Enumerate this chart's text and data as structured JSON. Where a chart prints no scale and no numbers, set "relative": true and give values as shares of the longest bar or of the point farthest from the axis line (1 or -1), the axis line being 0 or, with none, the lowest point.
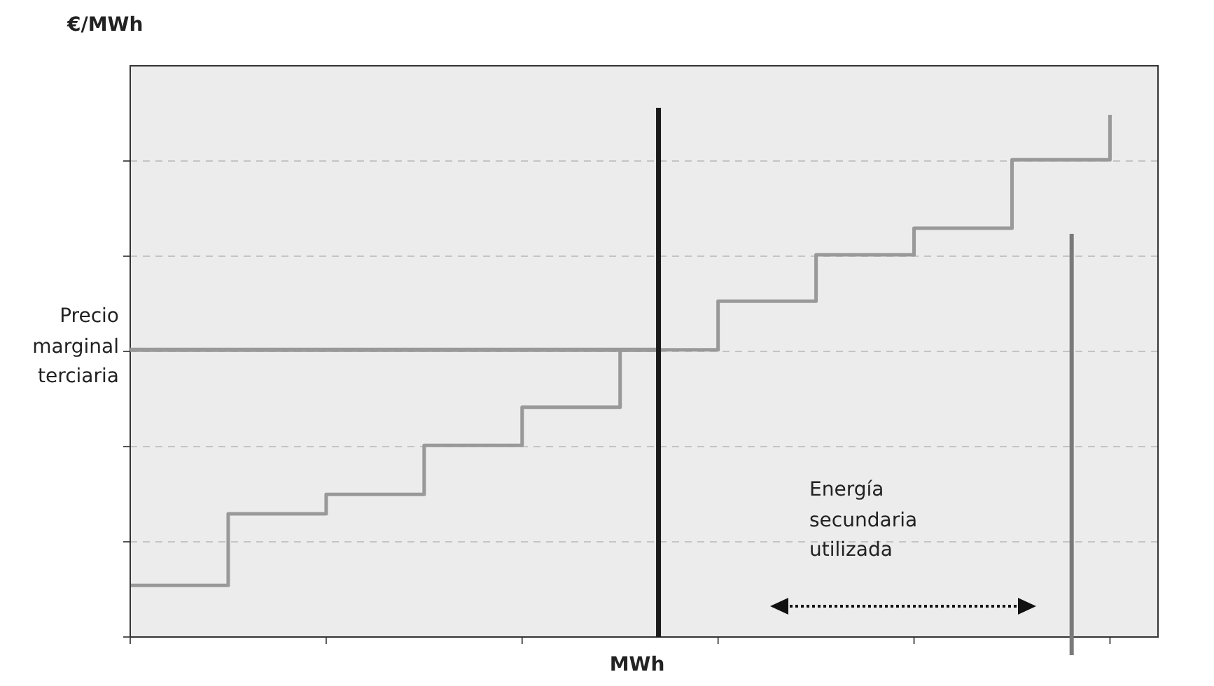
{
  "chart_data": {
    "type": "step",
    "relative": true,
    "ylabel": "€/MWh",
    "xlabel": "MWh",
    "categories": [
      null,
      null,
      null,
      null,
      null,
      null,
      null,
      null,
      null,
      null,
      null
    ],
    "series": [
      {
        "color": "#999999",
        "values": [
          0.099,
          0.236,
          0.273,
          0.367,
          0.44,
          0.55,
          0.643,
          0.732,
          0.783,
          0.914,
          1.0
        ]
      }
    ],
    "ref_lines": [
      {
        "axis": "y",
        "value": 0.55,
        "label": "Precio\nmarginal\nterciaria",
        "color": "#999999"
      }
    ],
    "annotations": [
      "Energía\nsecundaria\nutilizada"
    ],
    "grid": "y",
    "legend": false,
    "marker": "none",
    "line_style": "solid"
  }
}
